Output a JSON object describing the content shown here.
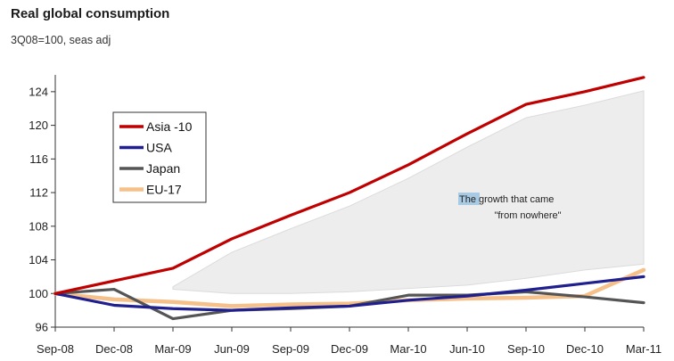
{
  "chart_data": {
    "type": "line",
    "title": "Real global consumption",
    "subtitle": "3Q08=100, seas adj",
    "xlabel": "",
    "ylabel": "",
    "categories": [
      "Sep-08",
      "Dec-08",
      "Mar-09",
      "Jun-09",
      "Sep-09",
      "Dec-09",
      "Mar-10",
      "Jun-10",
      "Sep-10",
      "Dec-10",
      "Mar-11"
    ],
    "ylim": [
      96,
      126
    ],
    "yticks": [
      96,
      100,
      104,
      108,
      112,
      116,
      120,
      124
    ],
    "grid": false,
    "legend_position": "top-left",
    "series": [
      {
        "name": "Asia -10",
        "color": "#c00000",
        "values": [
          100,
          101.5,
          103,
          106.5,
          109.3,
          112,
          115.3,
          119,
          122.5,
          124,
          125.7
        ]
      },
      {
        "name": "USA",
        "color": "#1f1f8f",
        "values": [
          100,
          98.6,
          98.2,
          98,
          98.3,
          98.5,
          99.2,
          99.7,
          100.4,
          101.2,
          102
        ]
      },
      {
        "name": "Japan",
        "color": "#555555",
        "values": [
          100,
          100.5,
          97,
          98,
          98.2,
          98.5,
          99.8,
          99.8,
          100.2,
          99.6,
          98.9
        ]
      },
      {
        "name": "EU-17",
        "color": "#f6c08a",
        "values": [
          100,
          99.3,
          99,
          98.5,
          98.7,
          98.8,
          99.2,
          99.4,
          99.5,
          99.7,
          102.8
        ]
      }
    ],
    "annotation": {
      "text_line1_highlight": "The",
      "text_line1_rest": " growth that came",
      "text_line2": "\"from nowhere\""
    }
  }
}
